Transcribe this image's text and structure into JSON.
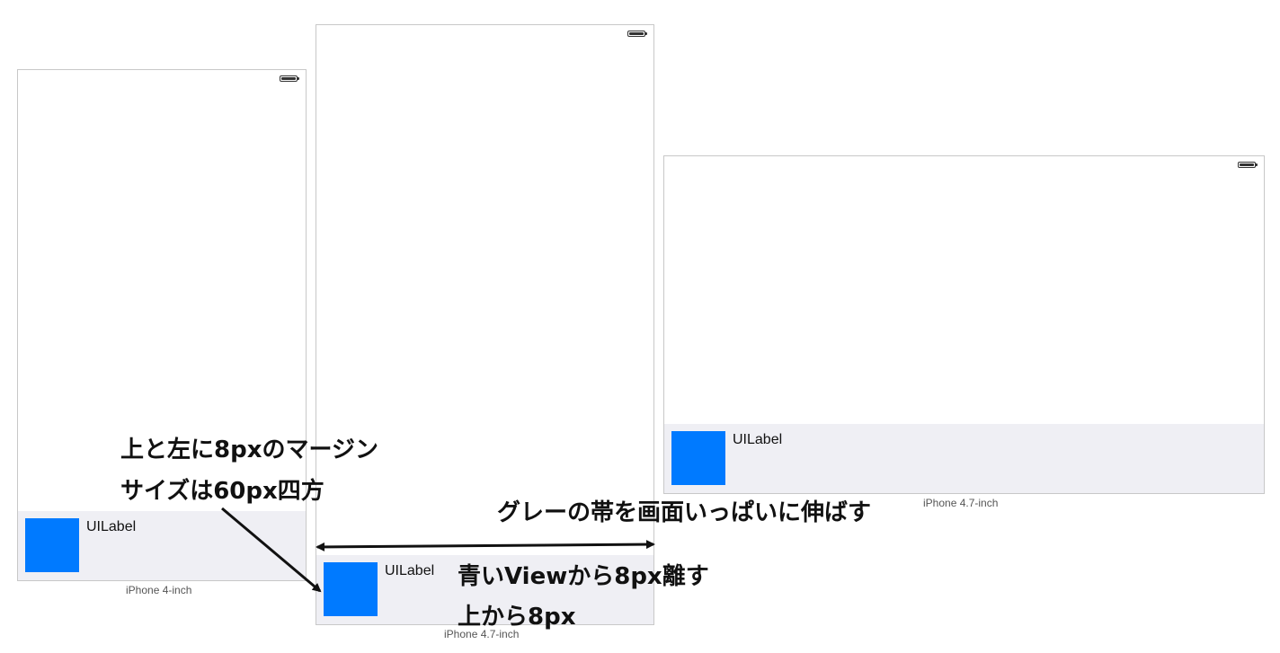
{
  "devices": [
    {
      "caption": "iPhone 4-inch",
      "label": "UILabel"
    },
    {
      "caption": "iPhone 4.7-inch",
      "label": "UILabel"
    },
    {
      "caption": "iPhone 4.7-inch",
      "label": "UILabel"
    }
  ],
  "annotations": {
    "margin_note": "上と左に8pxのマージン",
    "size_note": "サイズは60px四方",
    "stretch_note": "グレーの帯を画面いっぱいに伸ばす",
    "offset_note": "青いViewから8px離す",
    "top_note": "上から8px"
  },
  "colors": {
    "blue_view": "#007aff",
    "gray_band": "#efeff4",
    "device_border": "#c8c8c8",
    "annotation_text": "#111111"
  },
  "icons": [
    "battery-icon",
    "arrow-icon",
    "double-arrow-icon"
  ]
}
